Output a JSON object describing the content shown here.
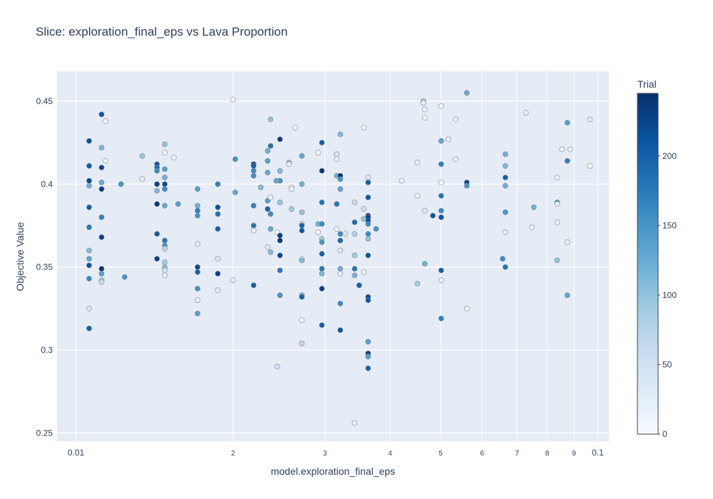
{
  "chart_data": {
    "type": "scatter",
    "title": "Slice: exploration_final_eps vs Lava Proportion",
    "xlabel": "model.exploration_final_eps",
    "ylabel": "Objective Value",
    "x_scale": "log",
    "xlim": [
      0.0092,
      0.105
    ],
    "ylim": [
      0.245,
      0.468
    ],
    "x_ticks": [
      {
        "v": 0.01,
        "label": "0.01",
        "minor": false
      },
      {
        "v": 0.02,
        "label": "2",
        "minor": true
      },
      {
        "v": 0.03,
        "label": "3",
        "minor": true
      },
      {
        "v": 0.04,
        "label": "4",
        "minor": true
      },
      {
        "v": 0.05,
        "label": "5",
        "minor": true
      },
      {
        "v": 0.06,
        "label": "6",
        "minor": true
      },
      {
        "v": 0.07,
        "label": "7",
        "minor": true
      },
      {
        "v": 0.08,
        "label": "8",
        "minor": true
      },
      {
        "v": 0.09,
        "label": "9",
        "minor": true
      },
      {
        "v": 0.1,
        "label": "0.1",
        "minor": false
      }
    ],
    "y_ticks": [
      {
        "v": 0.25,
        "label": "0.25"
      },
      {
        "v": 0.3,
        "label": "0.3"
      },
      {
        "v": 0.35,
        "label": "0.35"
      },
      {
        "v": 0.4,
        "label": "0.4"
      },
      {
        "v": 0.45,
        "label": "0.45"
      }
    ],
    "grid": true,
    "colorbar": {
      "title": "Trial",
      "min": 0,
      "max": 245,
      "ticks": [
        0,
        50,
        100,
        150,
        200
      ],
      "colors": [
        "#f7fbff",
        "#deebf7",
        "#c6dbef",
        "#9ecae1",
        "#6baed6",
        "#4292c6",
        "#2171b5",
        "#08519c",
        "#08306b"
      ]
    },
    "points": [
      [
        0.0106,
        0.426,
        215
      ],
      [
        0.0106,
        0.411,
        205
      ],
      [
        0.0106,
        0.402,
        220
      ],
      [
        0.0106,
        0.399,
        120
      ],
      [
        0.0106,
        0.386,
        200
      ],
      [
        0.0106,
        0.374,
        175
      ],
      [
        0.0106,
        0.36,
        110
      ],
      [
        0.0106,
        0.355,
        130
      ],
      [
        0.0106,
        0.351,
        210
      ],
      [
        0.0106,
        0.343,
        160
      ],
      [
        0.0106,
        0.325,
        40
      ],
      [
        0.0106,
        0.313,
        200
      ],
      [
        0.0112,
        0.442,
        210
      ],
      [
        0.0112,
        0.422,
        115
      ],
      [
        0.0112,
        0.41,
        222
      ],
      [
        0.0112,
        0.401,
        125
      ],
      [
        0.0112,
        0.397,
        235
      ],
      [
        0.0112,
        0.38,
        170
      ],
      [
        0.0112,
        0.368,
        232
      ],
      [
        0.0112,
        0.349,
        240
      ],
      [
        0.0112,
        0.346,
        140
      ],
      [
        0.0112,
        0.342,
        90
      ],
      [
        0.0112,
        0.341,
        60
      ],
      [
        0.0114,
        0.438,
        10
      ],
      [
        0.0114,
        0.414,
        15
      ],
      [
        0.0122,
        0.4,
        150
      ],
      [
        0.0124,
        0.344,
        150
      ],
      [
        0.0134,
        0.417,
        95
      ],
      [
        0.0134,
        0.403,
        25
      ],
      [
        0.0143,
        0.412,
        205
      ],
      [
        0.0143,
        0.41,
        190
      ],
      [
        0.0143,
        0.408,
        160
      ],
      [
        0.0143,
        0.4,
        230
      ],
      [
        0.0143,
        0.396,
        110
      ],
      [
        0.0143,
        0.388,
        238
      ],
      [
        0.0143,
        0.37,
        205
      ],
      [
        0.0143,
        0.355,
        230
      ],
      [
        0.0148,
        0.424,
        100
      ],
      [
        0.0148,
        0.419,
        5
      ],
      [
        0.0148,
        0.409,
        140
      ],
      [
        0.0148,
        0.404,
        120
      ],
      [
        0.0148,
        0.4,
        220
      ],
      [
        0.0148,
        0.397,
        160
      ],
      [
        0.0148,
        0.387,
        130
      ],
      [
        0.0148,
        0.366,
        180
      ],
      [
        0.0148,
        0.363,
        150
      ],
      [
        0.0148,
        0.361,
        70
      ],
      [
        0.0148,
        0.353,
        90
      ],
      [
        0.0148,
        0.35,
        110
      ],
      [
        0.0148,
        0.348,
        50
      ],
      [
        0.0148,
        0.345,
        20
      ],
      [
        0.0154,
        0.416,
        15
      ],
      [
        0.0157,
        0.388,
        140
      ],
      [
        0.0171,
        0.397,
        140
      ],
      [
        0.0171,
        0.387,
        120
      ],
      [
        0.0171,
        0.384,
        170
      ],
      [
        0.0171,
        0.381,
        150
      ],
      [
        0.0171,
        0.364,
        30
      ],
      [
        0.0171,
        0.35,
        225
      ],
      [
        0.0171,
        0.347,
        200
      ],
      [
        0.0171,
        0.337,
        150
      ],
      [
        0.0171,
        0.33,
        20
      ],
      [
        0.0171,
        0.322,
        140
      ],
      [
        0.0187,
        0.4,
        170
      ],
      [
        0.0187,
        0.386,
        215
      ],
      [
        0.0187,
        0.382,
        185
      ],
      [
        0.0187,
        0.373,
        200
      ],
      [
        0.0187,
        0.355,
        40
      ],
      [
        0.0187,
        0.346,
        230
      ],
      [
        0.0187,
        0.336,
        30
      ],
      [
        0.02,
        0.451,
        10
      ],
      [
        0.02,
        0.342,
        20
      ],
      [
        0.0202,
        0.415,
        150
      ],
      [
        0.0202,
        0.395,
        130
      ],
      [
        0.0219,
        0.412,
        230
      ],
      [
        0.0219,
        0.411,
        200
      ],
      [
        0.0219,
        0.408,
        160
      ],
      [
        0.0219,
        0.405,
        155
      ],
      [
        0.0219,
        0.387,
        170
      ],
      [
        0.0219,
        0.375,
        180
      ],
      [
        0.0219,
        0.372,
        20
      ],
      [
        0.0219,
        0.339,
        200
      ],
      [
        0.0226,
        0.398,
        110
      ],
      [
        0.0233,
        0.42,
        120
      ],
      [
        0.0233,
        0.414,
        140
      ],
      [
        0.0233,
        0.407,
        130
      ],
      [
        0.0233,
        0.39,
        140
      ],
      [
        0.0233,
        0.385,
        200
      ],
      [
        0.0233,
        0.362,
        30
      ],
      [
        0.0236,
        0.439,
        100
      ],
      [
        0.0236,
        0.423,
        180
      ],
      [
        0.0236,
        0.392,
        20
      ],
      [
        0.0236,
        0.382,
        160
      ],
      [
        0.0236,
        0.373,
        130
      ],
      [
        0.0236,
        0.359,
        110
      ],
      [
        0.0243,
        0.371,
        10
      ],
      [
        0.0243,
        0.29,
        50
      ],
      [
        0.0246,
        0.427,
        235
      ],
      [
        0.0246,
        0.408,
        110
      ],
      [
        0.0246,
        0.402,
        150
      ],
      [
        0.0246,
        0.389,
        100
      ],
      [
        0.0246,
        0.369,
        230
      ],
      [
        0.0246,
        0.366,
        240
      ],
      [
        0.0246,
        0.357,
        225
      ],
      [
        0.0246,
        0.348,
        180
      ],
      [
        0.0246,
        0.333,
        150
      ],
      [
        0.0242,
        0.402,
        130
      ],
      [
        0.0256,
        0.413,
        110
      ],
      [
        0.0256,
        0.412,
        25
      ],
      [
        0.0259,
        0.398,
        5
      ],
      [
        0.0259,
        0.397,
        20
      ],
      [
        0.0259,
        0.385,
        90
      ],
      [
        0.0263,
        0.434,
        15
      ],
      [
        0.0271,
        0.417,
        130
      ],
      [
        0.0271,
        0.4,
        120
      ],
      [
        0.0271,
        0.383,
        100
      ],
      [
        0.0271,
        0.376,
        50
      ],
      [
        0.0271,
        0.375,
        200
      ],
      [
        0.0271,
        0.372,
        210
      ],
      [
        0.0271,
        0.355,
        20
      ],
      [
        0.0271,
        0.354,
        110
      ],
      [
        0.0271,
        0.333,
        120
      ],
      [
        0.0271,
        0.332,
        200
      ],
      [
        0.0271,
        0.318,
        20
      ],
      [
        0.0271,
        0.304,
        70
      ],
      [
        0.0291,
        0.419,
        10
      ],
      [
        0.0291,
        0.376,
        120
      ],
      [
        0.0291,
        0.371,
        10
      ],
      [
        0.0296,
        0.425,
        200
      ],
      [
        0.0296,
        0.408,
        240
      ],
      [
        0.0296,
        0.389,
        180
      ],
      [
        0.0296,
        0.376,
        160
      ],
      [
        0.0296,
        0.367,
        90
      ],
      [
        0.0296,
        0.365,
        150
      ],
      [
        0.0296,
        0.358,
        200
      ],
      [
        0.0296,
        0.349,
        180
      ],
      [
        0.0296,
        0.346,
        110
      ],
      [
        0.0296,
        0.337,
        230
      ],
      [
        0.0296,
        0.315,
        200
      ],
      [
        0.0316,
        0.418,
        40
      ],
      [
        0.0316,
        0.415,
        20
      ],
      [
        0.0316,
        0.405,
        120
      ],
      [
        0.0316,
        0.373,
        10
      ],
      [
        0.0316,
        0.388,
        180
      ],
      [
        0.0321,
        0.43,
        110
      ],
      [
        0.0321,
        0.405,
        240
      ],
      [
        0.0321,
        0.403,
        150
      ],
      [
        0.0321,
        0.397,
        130
      ],
      [
        0.0321,
        0.37,
        160
      ],
      [
        0.0321,
        0.366,
        190
      ],
      [
        0.0321,
        0.36,
        30
      ],
      [
        0.0321,
        0.349,
        120
      ],
      [
        0.0321,
        0.346,
        25
      ],
      [
        0.0321,
        0.328,
        160
      ],
      [
        0.0321,
        0.312,
        210
      ],
      [
        0.0328,
        0.37,
        40
      ],
      [
        0.0342,
        0.389,
        60
      ],
      [
        0.0342,
        0.377,
        190
      ],
      [
        0.0342,
        0.37,
        80
      ],
      [
        0.0342,
        0.357,
        90
      ],
      [
        0.0342,
        0.349,
        180
      ],
      [
        0.0342,
        0.345,
        120
      ],
      [
        0.0342,
        0.256,
        20
      ],
      [
        0.0349,
        0.339,
        200
      ],
      [
        0.0356,
        0.434,
        10
      ],
      [
        0.0356,
        0.385,
        50
      ],
      [
        0.0356,
        0.379,
        100
      ],
      [
        0.0356,
        0.347,
        20
      ],
      [
        0.0363,
        0.404,
        40
      ],
      [
        0.0363,
        0.401,
        200
      ],
      [
        0.0363,
        0.392,
        210
      ],
      [
        0.0363,
        0.381,
        240
      ],
      [
        0.0363,
        0.38,
        230
      ],
      [
        0.0363,
        0.378,
        220
      ],
      [
        0.0363,
        0.376,
        160
      ],
      [
        0.0363,
        0.37,
        160
      ],
      [
        0.0363,
        0.367,
        100
      ],
      [
        0.0363,
        0.357,
        210
      ],
      [
        0.0363,
        0.332,
        220
      ],
      [
        0.0363,
        0.33,
        210
      ],
      [
        0.0363,
        0.305,
        140
      ],
      [
        0.0363,
        0.298,
        230
      ],
      [
        0.0363,
        0.296,
        140
      ],
      [
        0.0363,
        0.289,
        200
      ],
      [
        0.0376,
        0.373,
        150
      ],
      [
        0.0421,
        0.402,
        20
      ],
      [
        0.0451,
        0.413,
        20
      ],
      [
        0.0451,
        0.393,
        15
      ],
      [
        0.0451,
        0.34,
        90
      ],
      [
        0.0463,
        0.45,
        90
      ],
      [
        0.0463,
        0.449,
        25
      ],
      [
        0.0466,
        0.445,
        20
      ],
      [
        0.0466,
        0.44,
        10
      ],
      [
        0.0466,
        0.384,
        40
      ],
      [
        0.0466,
        0.352,
        120
      ],
      [
        0.0483,
        0.381,
        210
      ],
      [
        0.0501,
        0.447,
        10
      ],
      [
        0.0501,
        0.426,
        130
      ],
      [
        0.0501,
        0.412,
        170
      ],
      [
        0.0501,
        0.401,
        10
      ],
      [
        0.0501,
        0.393,
        180
      ],
      [
        0.0501,
        0.384,
        160
      ],
      [
        0.0501,
        0.38,
        210
      ],
      [
        0.0501,
        0.348,
        200
      ],
      [
        0.0501,
        0.342,
        20
      ],
      [
        0.0501,
        0.319,
        170
      ],
      [
        0.0517,
        0.427,
        25
      ],
      [
        0.0534,
        0.439,
        20
      ],
      [
        0.0534,
        0.415,
        15
      ],
      [
        0.0561,
        0.455,
        130
      ],
      [
        0.0561,
        0.401,
        220
      ],
      [
        0.0561,
        0.399,
        150
      ],
      [
        0.0561,
        0.325,
        10
      ],
      [
        0.0665,
        0.418,
        120
      ],
      [
        0.0665,
        0.411,
        110
      ],
      [
        0.0665,
        0.404,
        200
      ],
      [
        0.0665,
        0.399,
        120
      ],
      [
        0.0665,
        0.383,
        150
      ],
      [
        0.0665,
        0.371,
        30
      ],
      [
        0.0665,
        0.35,
        180
      ],
      [
        0.0657,
        0.355,
        160
      ],
      [
        0.0728,
        0.443,
        20
      ],
      [
        0.0747,
        0.374,
        20
      ],
      [
        0.0754,
        0.386,
        120
      ],
      [
        0.0836,
        0.404,
        20
      ],
      [
        0.0836,
        0.389,
        150
      ],
      [
        0.0836,
        0.388,
        30
      ],
      [
        0.0836,
        0.377,
        20
      ],
      [
        0.0836,
        0.354,
        100
      ],
      [
        0.0854,
        0.421,
        15
      ],
      [
        0.0874,
        0.437,
        140
      ],
      [
        0.0874,
        0.414,
        170
      ],
      [
        0.0874,
        0.365,
        20
      ],
      [
        0.0874,
        0.333,
        130
      ],
      [
        0.0885,
        0.421,
        20
      ],
      [
        0.0966,
        0.439,
        30
      ],
      [
        0.0966,
        0.411,
        10
      ]
    ]
  }
}
